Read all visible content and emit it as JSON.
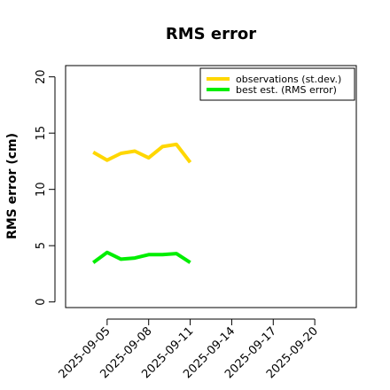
{
  "chart_data": {
    "type": "line",
    "title": "RMS error",
    "xlabel": "",
    "ylabel": "RMS error (cm)",
    "x_ticks": [
      "2025-09-05",
      "2025-09-08",
      "2025-09-11",
      "2025-09-14",
      "2025-09-17",
      "2025-09-20"
    ],
    "x_highlight_tick": "2025-09-11",
    "x_highlight_color": "#228B22",
    "xlim": [
      "2025-09-02T00:00",
      "2025-09-23T00:00"
    ],
    "y_ticks": [
      0,
      5,
      10,
      15,
      20
    ],
    "ylim": [
      -0.5,
      21
    ],
    "grid": false,
    "legend_position": "top-right",
    "x": [
      "2025-09-04",
      "2025-09-05",
      "2025-09-06",
      "2025-09-07",
      "2025-09-08",
      "2025-09-09",
      "2025-09-10",
      "2025-09-11"
    ],
    "series": [
      {
        "name": "observations (st.dev.)",
        "color": "#FFD700",
        "values": [
          13.3,
          12.6,
          13.2,
          13.4,
          12.8,
          13.8,
          14.0,
          12.4
        ]
      },
      {
        "name": "best est. (RMS error)",
        "color": "#00EE00",
        "values": [
          3.5,
          4.4,
          3.8,
          3.9,
          4.2,
          4.2,
          4.3,
          3.5
        ]
      }
    ]
  }
}
